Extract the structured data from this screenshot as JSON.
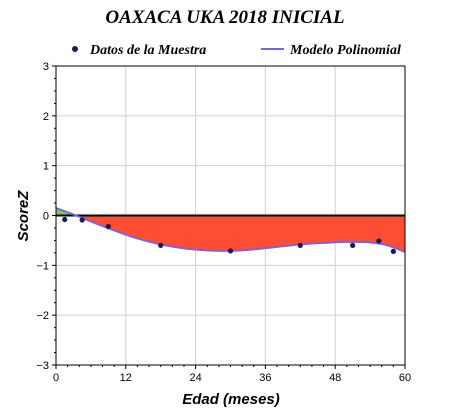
{
  "chart_data": {
    "type": "scatter",
    "title": "OAXACA UKA 2018 INICIAL",
    "xlabel": "Edad (meses)",
    "ylabel": "ScoreZ",
    "xlim": [
      0,
      60
    ],
    "ylim": [
      -3,
      3
    ],
    "xticks": [
      0,
      12,
      24,
      36,
      48,
      60
    ],
    "yticks": [
      -3,
      -2,
      -1,
      0,
      1,
      2,
      3
    ],
    "grid": true,
    "legend_position": "top",
    "series": [
      {
        "name": "Datos de la Muestra",
        "kind": "points",
        "color": "#1a1a5e",
        "points": [
          {
            "x": 1.5,
            "y": -0.08
          },
          {
            "x": 4.5,
            "y": -0.09
          },
          {
            "x": 9,
            "y": -0.22
          },
          {
            "x": 18,
            "y": -0.6
          },
          {
            "x": 30,
            "y": -0.71
          },
          {
            "x": 42,
            "y": -0.6
          },
          {
            "x": 51,
            "y": -0.6
          },
          {
            "x": 55.5,
            "y": -0.51
          },
          {
            "x": 58,
            "y": -0.72
          }
        ]
      },
      {
        "name": "Modelo Polinomial",
        "kind": "line",
        "color": "#6a6ae8",
        "points": [
          {
            "x": 0,
            "y": 0.15
          },
          {
            "x": 3,
            "y": 0.02
          },
          {
            "x": 6,
            "y": -0.12
          },
          {
            "x": 10,
            "y": -0.3
          },
          {
            "x": 14,
            "y": -0.46
          },
          {
            "x": 18,
            "y": -0.58
          },
          {
            "x": 22,
            "y": -0.66
          },
          {
            "x": 26,
            "y": -0.7
          },
          {
            "x": 30,
            "y": -0.71
          },
          {
            "x": 34,
            "y": -0.68
          },
          {
            "x": 38,
            "y": -0.63
          },
          {
            "x": 42,
            "y": -0.58
          },
          {
            "x": 46,
            "y": -0.55
          },
          {
            "x": 50,
            "y": -0.53
          },
          {
            "x": 54,
            "y": -0.54
          },
          {
            "x": 57,
            "y": -0.6
          },
          {
            "x": 60,
            "y": -0.73
          }
        ]
      }
    ],
    "reference_line": {
      "y": 0,
      "color": "#000000"
    },
    "fill": {
      "above_color": "#7ccd4c",
      "below_color": "#ff4d33"
    },
    "grid_color": "#d0d0d0",
    "background": "#ffffff"
  }
}
